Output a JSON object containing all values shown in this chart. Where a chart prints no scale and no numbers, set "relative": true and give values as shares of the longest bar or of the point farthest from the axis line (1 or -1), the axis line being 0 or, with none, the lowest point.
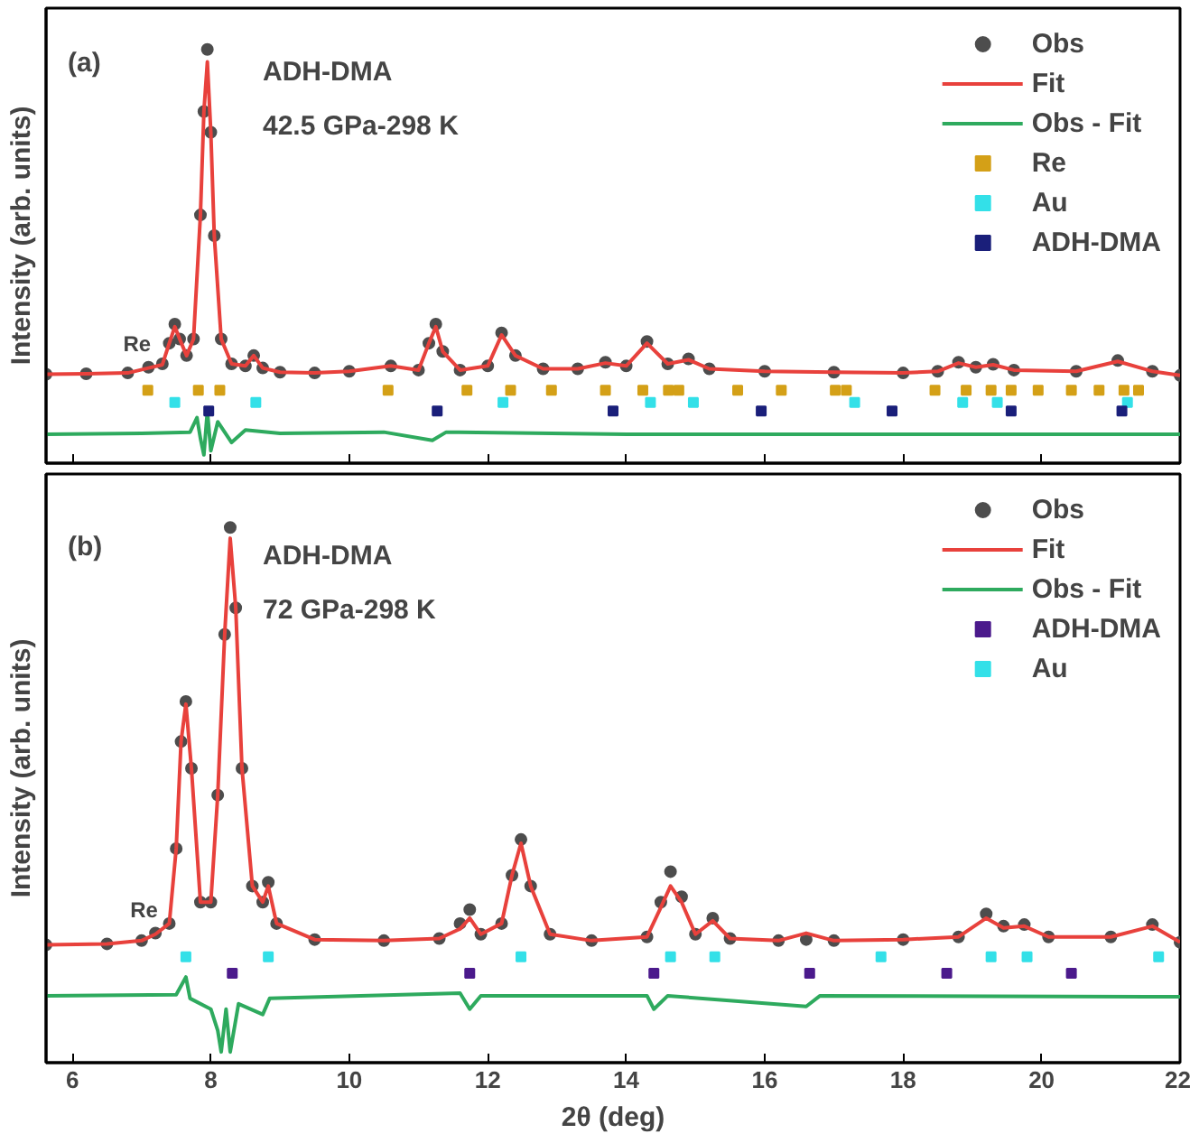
{
  "chart_data": [
    {
      "type": "line",
      "relative": true,
      "ylabel": "Intensity (arb. units)",
      "xlim": [
        5.62,
        22
      ],
      "xticks": [
        6,
        8,
        10,
        12,
        14,
        16,
        18,
        20,
        22
      ],
      "tick_labels": false,
      "legend": "top right",
      "grid": false,
      "annotations": [
        "(a)",
        "ADH-DMA",
        "42.5 GPa-298 K",
        {
          "text": "Re",
          "x": 7.1,
          "y": 0.232
        }
      ],
      "series": [
        {
          "name": "Obs",
          "type": "scatter",
          "marker": "circle",
          "color": "#4d4d4d",
          "x": [
            5.62,
            6.2,
            6.8,
            7.1,
            7.3,
            7.4,
            7.48,
            7.55,
            7.65,
            7.75,
            7.85,
            7.9,
            7.95,
            8.0,
            8.05,
            8.15,
            8.3,
            8.5,
            8.62,
            8.75,
            9.0,
            9.5,
            10.0,
            10.6,
            11.0,
            11.15,
            11.25,
            11.35,
            11.6,
            12.0,
            12.2,
            12.4,
            12.8,
            13.3,
            13.7,
            14.0,
            14.3,
            14.6,
            14.9,
            15.2,
            16.0,
            17.0,
            18.0,
            18.5,
            18.8,
            19.05,
            19.3,
            19.6,
            20.5,
            21.1,
            21.6,
            22.0
          ],
          "values": [
            0.215,
            0.216,
            0.218,
            0.232,
            0.24,
            0.29,
            0.336,
            0.3,
            0.26,
            0.3,
            0.6,
            0.85,
            1.0,
            0.8,
            0.55,
            0.3,
            0.24,
            0.235,
            0.26,
            0.23,
            0.22,
            0.218,
            0.222,
            0.235,
            0.225,
            0.29,
            0.336,
            0.27,
            0.225,
            0.235,
            0.315,
            0.26,
            0.228,
            0.228,
            0.244,
            0.235,
            0.294,
            0.24,
            0.252,
            0.228,
            0.222,
            0.22,
            0.218,
            0.222,
            0.244,
            0.232,
            0.239,
            0.225,
            0.222,
            0.248,
            0.222,
            0.212
          ]
        },
        {
          "name": "Fit",
          "color": "#e8413c",
          "x": [
            5.62,
            6.2,
            6.8,
            7.1,
            7.3,
            7.4,
            7.48,
            7.55,
            7.65,
            7.75,
            7.85,
            7.9,
            7.95,
            8.0,
            8.05,
            8.15,
            8.3,
            8.5,
            8.62,
            8.75,
            9.0,
            9.5,
            10.0,
            10.6,
            11.0,
            11.15,
            11.25,
            11.35,
            11.6,
            12.0,
            12.2,
            12.4,
            12.8,
            13.3,
            13.7,
            14.0,
            14.3,
            14.6,
            14.9,
            15.2,
            16.0,
            17.0,
            18.0,
            18.5,
            18.8,
            19.05,
            19.3,
            19.6,
            20.5,
            21.1,
            21.6,
            22.0
          ],
          "values": [
            0.215,
            0.216,
            0.218,
            0.23,
            0.238,
            0.29,
            0.33,
            0.3,
            0.26,
            0.3,
            0.6,
            0.85,
            0.97,
            0.8,
            0.55,
            0.3,
            0.24,
            0.235,
            0.26,
            0.23,
            0.22,
            0.218,
            0.222,
            0.235,
            0.225,
            0.29,
            0.33,
            0.27,
            0.225,
            0.235,
            0.31,
            0.26,
            0.228,
            0.228,
            0.242,
            0.235,
            0.29,
            0.24,
            0.25,
            0.228,
            0.222,
            0.22,
            0.218,
            0.222,
            0.242,
            0.232,
            0.238,
            0.225,
            0.222,
            0.246,
            0.222,
            0.212
          ]
        },
        {
          "name": "Obs - Fit",
          "color": "#2eaa5e",
          "x": [
            5.62,
            7.0,
            7.7,
            7.8,
            7.85,
            7.9,
            7.95,
            8.0,
            8.1,
            8.3,
            8.5,
            9.0,
            10.5,
            11.2,
            11.4,
            14.0,
            22.0
          ],
          "values": [
            0.07,
            0.072,
            0.075,
            0.11,
            0.06,
            0.02,
            0.126,
            0.03,
            0.1,
            0.05,
            0.08,
            0.072,
            0.075,
            0.055,
            0.075,
            0.07,
            0.07
          ]
        },
        {
          "name": "Re",
          "type": "scatter",
          "marker": "square",
          "color": "#d4a017",
          "x": [
            7.09,
            7.82,
            8.13,
            10.56,
            11.7,
            12.33,
            12.92,
            13.7,
            14.24,
            14.61,
            14.76,
            15.61,
            16.24,
            17.02,
            17.18,
            18.46,
            18.91,
            19.27,
            19.56,
            19.95,
            20.43,
            20.83,
            21.19,
            21.4
          ],
          "values": [
            0.176,
            0.176,
            0.176,
            0.176,
            0.176,
            0.176,
            0.176,
            0.176,
            0.176,
            0.176,
            0.176,
            0.176,
            0.176,
            0.176,
            0.176,
            0.176,
            0.176,
            0.176,
            0.176,
            0.176,
            0.176,
            0.176,
            0.176,
            0.176
          ]
        },
        {
          "name": "Au",
          "type": "scatter",
          "marker": "square",
          "color": "#33e0e8",
          "x": [
            7.48,
            8.65,
            12.22,
            14.35,
            14.97,
            17.3,
            18.86,
            19.36,
            21.24
          ],
          "values": [
            0.147,
            0.147,
            0.147,
            0.147,
            0.147,
            0.147,
            0.147,
            0.147,
            0.147
          ]
        },
        {
          "name": "ADH-DMA",
          "type": "scatter",
          "marker": "square",
          "color": "#1a1f7a",
          "x": [
            7.97,
            11.27,
            13.81,
            15.95,
            17.84,
            19.56,
            21.16
          ],
          "values": [
            0.126,
            0.126,
            0.126,
            0.126,
            0.126,
            0.126,
            0.126
          ]
        }
      ]
    },
    {
      "type": "line",
      "relative": true,
      "ylabel": "Intensity (arb. units)",
      "xlabel": "2θ (deg)",
      "xlim": [
        5.62,
        22
      ],
      "xticks": [
        6,
        8,
        10,
        12,
        14,
        16,
        18,
        20,
        22
      ],
      "tick_labels": "x",
      "legend": "top right",
      "grid": false,
      "annotations": [
        "(b)",
        "ADH-DMA",
        "72 GPa-298 K",
        {
          "text": "Re",
          "x": 7.2,
          "y": 0.242
        }
      ],
      "series": [
        {
          "name": "Obs",
          "type": "scatter",
          "marker": "circle",
          "color": "#4d4d4d",
          "x": [
            5.62,
            6.5,
            7.0,
            7.2,
            7.4,
            7.5,
            7.57,
            7.64,
            7.72,
            7.85,
            8.0,
            8.1,
            8.2,
            8.28,
            8.36,
            8.45,
            8.6,
            8.75,
            8.83,
            8.95,
            9.5,
            10.5,
            11.3,
            11.6,
            11.74,
            11.9,
            12.2,
            12.35,
            12.48,
            12.62,
            12.9,
            13.5,
            14.3,
            14.5,
            14.64,
            14.8,
            15.0,
            15.25,
            15.5,
            16.2,
            16.6,
            17.0,
            18.0,
            18.8,
            19.2,
            19.45,
            19.75,
            20.1,
            21.0,
            21.6,
            22.0
          ],
          "values": [
            0.22,
            0.222,
            0.228,
            0.242,
            0.26,
            0.4,
            0.6,
            0.675,
            0.55,
            0.3,
            0.3,
            0.5,
            0.8,
            1.0,
            0.85,
            0.55,
            0.33,
            0.3,
            0.337,
            0.26,
            0.23,
            0.228,
            0.232,
            0.26,
            0.286,
            0.24,
            0.26,
            0.35,
            0.417,
            0.33,
            0.24,
            0.228,
            0.235,
            0.3,
            0.357,
            0.31,
            0.24,
            0.27,
            0.232,
            0.228,
            0.23,
            0.228,
            0.23,
            0.235,
            0.278,
            0.255,
            0.258,
            0.235,
            0.235,
            0.258,
            0.225
          ]
        },
        {
          "name": "Fit",
          "color": "#e8413c",
          "x": [
            5.62,
            6.5,
            7.0,
            7.2,
            7.4,
            7.5,
            7.57,
            7.64,
            7.72,
            7.85,
            8.0,
            8.1,
            8.2,
            8.28,
            8.36,
            8.45,
            8.6,
            8.75,
            8.83,
            8.95,
            9.5,
            10.5,
            11.3,
            11.6,
            11.74,
            11.9,
            12.2,
            12.35,
            12.48,
            12.62,
            12.9,
            13.5,
            14.3,
            14.5,
            14.64,
            14.8,
            15.0,
            15.25,
            15.5,
            16.2,
            16.6,
            17.0,
            18.0,
            18.8,
            19.2,
            19.45,
            19.75,
            20.1,
            21.0,
            21.6,
            22.0
          ],
          "values": [
            0.22,
            0.222,
            0.228,
            0.24,
            0.26,
            0.4,
            0.6,
            0.67,
            0.55,
            0.3,
            0.3,
            0.5,
            0.8,
            0.98,
            0.85,
            0.55,
            0.33,
            0.3,
            0.33,
            0.26,
            0.23,
            0.228,
            0.232,
            0.25,
            0.27,
            0.24,
            0.26,
            0.35,
            0.41,
            0.33,
            0.24,
            0.228,
            0.235,
            0.29,
            0.33,
            0.3,
            0.24,
            0.265,
            0.232,
            0.228,
            0.242,
            0.228,
            0.23,
            0.235,
            0.27,
            0.252,
            0.255,
            0.235,
            0.235,
            0.255,
            0.225
          ]
        },
        {
          "name": "Obs - Fit",
          "color": "#2eaa5e",
          "x": [
            5.62,
            7.5,
            7.64,
            7.7,
            8.0,
            8.1,
            8.15,
            8.22,
            8.28,
            8.4,
            8.75,
            8.85,
            11.6,
            11.74,
            11.9,
            14.3,
            14.4,
            14.6,
            16.6,
            16.8,
            22.0
          ],
          "values": [
            0.125,
            0.127,
            0.16,
            0.12,
            0.1,
            0.06,
            0.02,
            0.1,
            0.02,
            0.11,
            0.09,
            0.12,
            0.13,
            0.1,
            0.125,
            0.125,
            0.1,
            0.125,
            0.105,
            0.125,
            0.123
          ]
        },
        {
          "name": "ADH-DMA",
          "type": "scatter",
          "marker": "square",
          "color": "#4b1a8c",
          "x": [
            8.31,
            11.74,
            14.4,
            16.65,
            18.63,
            20.43
          ],
          "values": [
            0.167,
            0.167,
            0.167,
            0.167,
            0.167,
            0.167
          ]
        },
        {
          "name": "Au",
          "type": "scatter",
          "marker": "square",
          "color": "#33e0e8",
          "x": [
            7.64,
            8.83,
            12.48,
            14.64,
            15.28,
            17.68,
            19.27,
            19.79,
            21.69
          ],
          "values": [
            0.198,
            0.198,
            0.198,
            0.198,
            0.198,
            0.198,
            0.198,
            0.198,
            0.198
          ]
        }
      ]
    }
  ]
}
